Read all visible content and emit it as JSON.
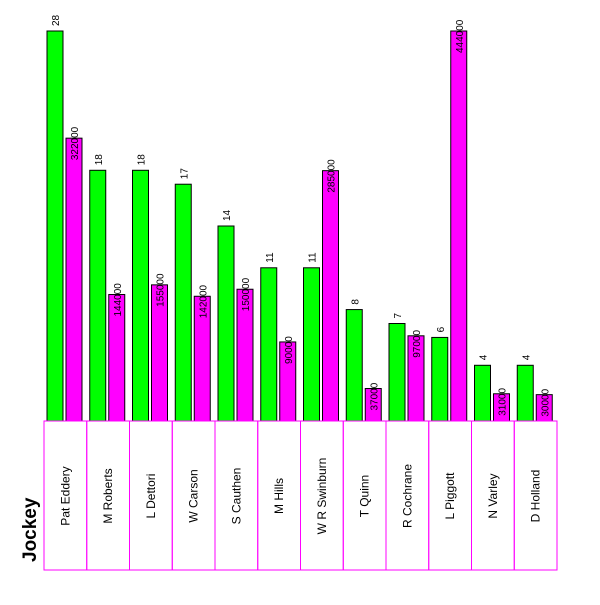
{
  "chart_data": {
    "type": "bar",
    "xlabel": "Jockey",
    "categories": [
      "Pat Eddery",
      "M Roberts",
      "L Dettori",
      "W Carson",
      "S Cauthen",
      "M Hills",
      "W R Swinburn",
      "T Quinn",
      "R Cochrane",
      "L Piggott",
      "N Varley",
      "D Holland"
    ],
    "series": [
      {
        "values": [
          28,
          18,
          18,
          17,
          14,
          11,
          11,
          8,
          7,
          6,
          4,
          4
        ],
        "color": "#00ff00",
        "max": 28
      },
      {
        "values": [
          322000,
          144000,
          155000,
          142000,
          150000,
          90000,
          285000,
          37000,
          97000,
          444000,
          31000,
          30000
        ],
        "color": "#ff00ff",
        "max": 444000
      }
    ],
    "grid": false,
    "legend": "none"
  }
}
